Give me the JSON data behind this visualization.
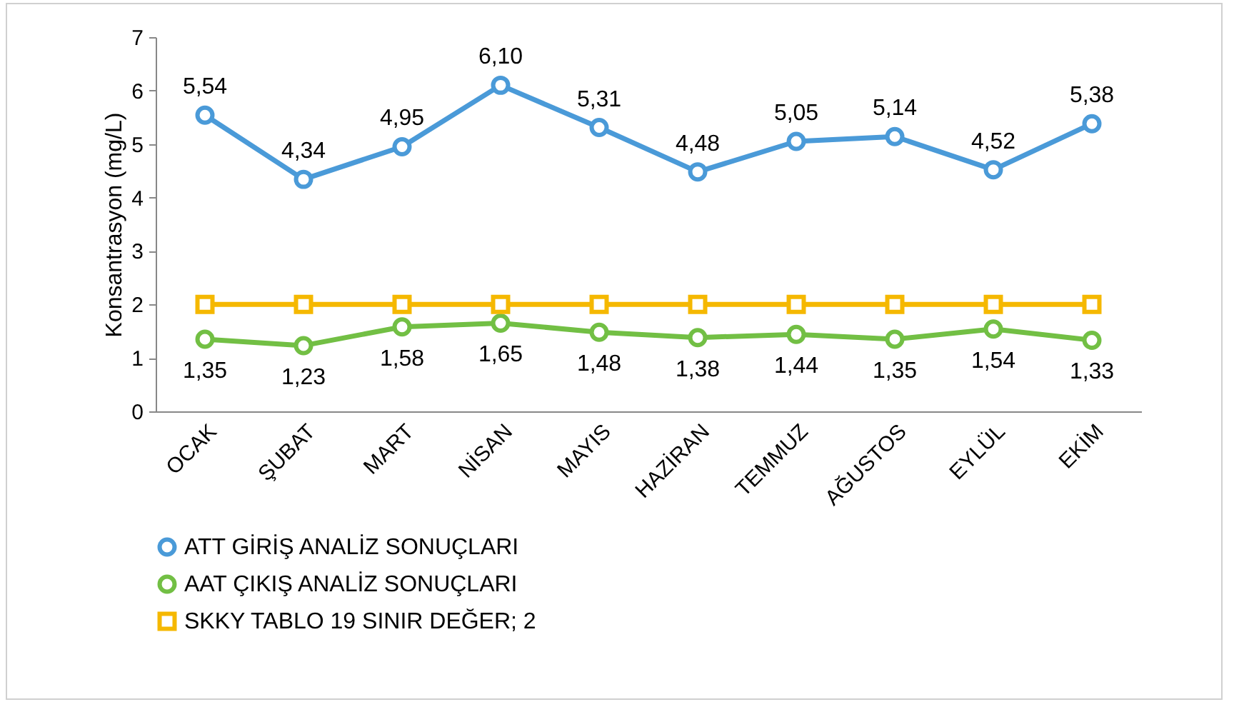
{
  "chart_data": {
    "type": "line",
    "ylabel": "Konsantrasyon (mg/L)",
    "categories": [
      "OCAK",
      "ŞUBAT",
      "MART",
      "NİSAN",
      "MAYIS",
      "HAZİRAN",
      "TEMMUZ",
      "AĞUSTOS",
      "EYLÜL",
      "EKİM"
    ],
    "series": [
      {
        "name": "ATT GİRİŞ ANALİZ SONUÇLARI",
        "color": "#4a9ad8",
        "marker": "circle",
        "data_labels": true,
        "value_labels": [
          "5,54",
          "4,34",
          "4,95",
          "6,10",
          "5,31",
          "4,48",
          "5,05",
          "5,14",
          "4,52",
          "5,38"
        ],
        "values": [
          5.54,
          4.34,
          4.95,
          6.1,
          5.31,
          4.48,
          5.05,
          5.14,
          4.52,
          5.38
        ]
      },
      {
        "name": "AAT ÇIKIŞ ANALİZ SONUÇLARI",
        "color": "#72bf44",
        "marker": "circle",
        "data_labels": true,
        "value_labels": [
          "1,35",
          "1,23",
          "1,58",
          "1,65",
          "1,48",
          "1,38",
          "1,44",
          "1,35",
          "1,54",
          "1,33"
        ],
        "values": [
          1.35,
          1.23,
          1.58,
          1.65,
          1.48,
          1.38,
          1.44,
          1.35,
          1.54,
          1.33
        ]
      },
      {
        "name": "SKKY TABLO 19 SINIR DEĞER; 2",
        "color": "#f5b800",
        "marker": "square",
        "values": [
          2,
          2,
          2,
          2,
          2,
          2,
          2,
          2,
          2,
          2
        ]
      }
    ],
    "ylim": [
      0,
      7
    ],
    "yticks": [
      0,
      1,
      2,
      3,
      4,
      5,
      6,
      7
    ],
    "grid": false,
    "legend": "bottom",
    "line_style": "solid"
  }
}
